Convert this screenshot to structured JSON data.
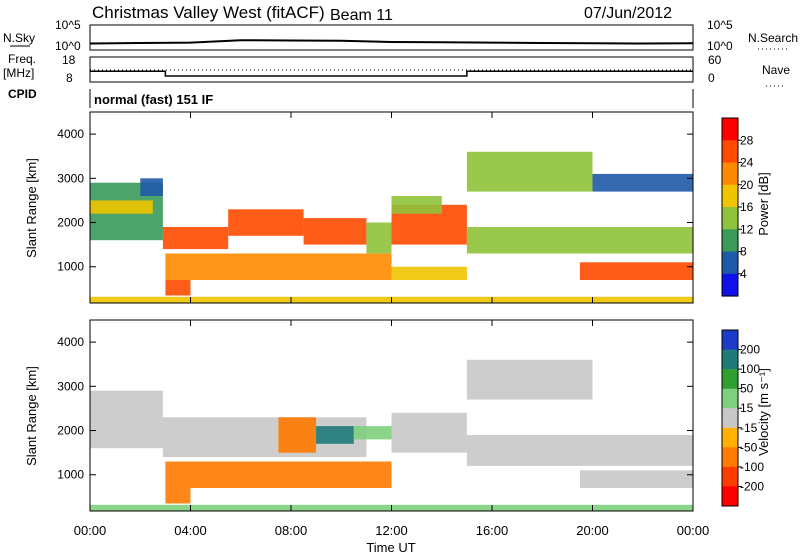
{
  "header": {
    "station": "Christmas Valley West (fitACF)",
    "beam": "Beam 11",
    "date": "07/Jun/2012"
  },
  "strip_labels": {
    "nsky": "N.Sky",
    "nsearch": "N.Search",
    "freq": "Freq.",
    "freq_unit": "[MHz]",
    "nave": "Nave",
    "cpid": "CPID",
    "cpid_text": "normal (fast) 151 IF",
    "noise_tick_hi": "10^5",
    "noise_tick_lo": "10^0",
    "freq_tick_hi": "18",
    "freq_tick_lo": "8",
    "nave_tick_hi": "60",
    "nave_tick_lo": "0"
  },
  "axes": {
    "ylabel": "Slant Range [km]",
    "xlabel": "Time UT",
    "yticks": [
      "1000",
      "2000",
      "3000",
      "4000"
    ],
    "xticks": [
      "00:00",
      "04:00",
      "08:00",
      "12:00",
      "16:00",
      "20:00",
      "00:00"
    ]
  },
  "colorbars": {
    "power": {
      "label": "Power [dB]",
      "ticks": [
        "28",
        "24",
        "20",
        "16",
        "12",
        "8",
        "4"
      ],
      "colors": [
        "#ff0000",
        "#ff4a00",
        "#ff8a00",
        "#f0c400",
        "#8fc23a",
        "#3a9a5a",
        "#1f5aa8",
        "#1010e8"
      ]
    },
    "velocity": {
      "label": "Velocity [m s⁻¹]",
      "ticks": [
        "200",
        "100",
        "50",
        "15",
        "-15",
        "-50",
        "-100",
        "-200"
      ],
      "colors": [
        "#1c3cc8",
        "#1f7a7a",
        "#2fa02f",
        "#7ed07e",
        "#c8c8c8",
        "#ffb000",
        "#ff7a00",
        "#ff3c00",
        "#ff0000"
      ]
    }
  },
  "chart_data": [
    {
      "type": "line",
      "name": "noise",
      "x_range_hours": [
        0,
        24
      ],
      "ylog": true,
      "x": [
        0,
        2,
        4,
        6,
        8,
        10,
        12,
        14,
        16,
        18,
        20,
        22,
        24
      ],
      "y_sky": [
        20,
        25,
        30,
        90,
        80,
        70,
        40,
        35,
        30,
        25,
        22,
        20,
        22
      ]
    },
    {
      "type": "line",
      "name": "frequency",
      "ylabel": "Freq. [MHz]",
      "ylim": [
        8,
        18
      ],
      "x": [
        0,
        3,
        3,
        15,
        15,
        24
      ],
      "values": [
        12.3,
        12.3,
        10.4,
        10.4,
        12.3,
        12.3
      ]
    },
    {
      "type": "heatmap",
      "name": "power",
      "xlabel": "Time UT",
      "ylabel": "Slant Range [km]",
      "xlim_hours": [
        0,
        24
      ],
      "ylim_km": [
        180,
        4500
      ],
      "colorbar_label": "Power [dB]",
      "colorbar_ticks": [
        4,
        8,
        12,
        16,
        20,
        24,
        28
      ],
      "regions": [
        {
          "t0": 0.0,
          "t1": 2.9,
          "r0": 1600,
          "r1": 2900,
          "value": 12
        },
        {
          "t0": 0.0,
          "t1": 2.5,
          "r0": 2200,
          "r1": 2500,
          "value": 18
        },
        {
          "t0": 2.0,
          "t1": 2.9,
          "r0": 2600,
          "r1": 3000,
          "value": 8
        },
        {
          "t0": 2.9,
          "t1": 5.5,
          "r0": 1400,
          "r1": 1900,
          "value": 28
        },
        {
          "t0": 5.5,
          "t1": 8.5,
          "r0": 1700,
          "r1": 2300,
          "value": 28
        },
        {
          "t0": 8.5,
          "t1": 11.0,
          "r0": 1500,
          "r1": 2100,
          "value": 28
        },
        {
          "t0": 3.0,
          "t1": 12.0,
          "r0": 700,
          "r1": 1300,
          "value": 22
        },
        {
          "t0": 3.0,
          "t1": 4.0,
          "r0": 350,
          "r1": 700,
          "value": 26
        },
        {
          "t0": 11.0,
          "t1": 12.0,
          "r0": 1300,
          "r1": 2000,
          "value": 14
        },
        {
          "t0": 12.0,
          "t1": 15.0,
          "r0": 1500,
          "r1": 2400,
          "value": 28
        },
        {
          "t0": 12.0,
          "t1": 14.0,
          "r0": 2200,
          "r1": 2600,
          "value": 14
        },
        {
          "t0": 12.0,
          "t1": 15.0,
          "r0": 700,
          "r1": 1000,
          "value": 18
        },
        {
          "t0": 15.0,
          "t1": 24.0,
          "r0": 1300,
          "r1": 1900,
          "value": 14
        },
        {
          "t0": 15.0,
          "t1": 20.0,
          "r0": 2700,
          "r1": 3600,
          "value": 14
        },
        {
          "t0": 19.5,
          "t1": 24.0,
          "r0": 700,
          "r1": 1100,
          "value": 26
        },
        {
          "t0": 20.0,
          "t1": 24.0,
          "r0": 2700,
          "r1": 3100,
          "value": 8
        },
        {
          "t0": 0.0,
          "t1": 24.0,
          "r0": 180,
          "r1": 320,
          "value": 18
        }
      ]
    },
    {
      "type": "heatmap",
      "name": "velocity",
      "xlabel": "Time UT",
      "ylabel": "Slant Range [km]",
      "xlim_hours": [
        0,
        24
      ],
      "ylim_km": [
        180,
        4500
      ],
      "colorbar_label": "Velocity [m s⁻¹]",
      "colorbar_ticks": [
        -200,
        -100,
        -50,
        -15,
        15,
        50,
        100,
        200
      ],
      "regions": [
        {
          "t0": 0.0,
          "t1": 2.9,
          "r0": 1600,
          "r1": 2900,
          "value": 0
        },
        {
          "t0": 2.9,
          "t1": 11.0,
          "r0": 1400,
          "r1": 2300,
          "value": 0
        },
        {
          "t0": 3.0,
          "t1": 12.0,
          "r0": 700,
          "r1": 1300,
          "value": -60
        },
        {
          "t0": 3.0,
          "t1": 4.0,
          "r0": 350,
          "r1": 700,
          "value": -60
        },
        {
          "t0": 7.5,
          "t1": 9.0,
          "r0": 1500,
          "r1": 2300,
          "value": -60
        },
        {
          "t0": 9.0,
          "t1": 10.5,
          "r0": 1700,
          "r1": 2100,
          "value": 200
        },
        {
          "t0": 10.5,
          "t1": 12.0,
          "r0": 1800,
          "r1": 2100,
          "value": 40
        },
        {
          "t0": 12.0,
          "t1": 15.0,
          "r0": 1500,
          "r1": 2400,
          "value": 0
        },
        {
          "t0": 15.0,
          "t1": 24.0,
          "r0": 1200,
          "r1": 1900,
          "value": 0
        },
        {
          "t0": 15.0,
          "t1": 20.0,
          "r0": 2700,
          "r1": 3600,
          "value": 0
        },
        {
          "t0": 19.5,
          "t1": 24.0,
          "r0": 700,
          "r1": 1100,
          "value": 0
        },
        {
          "t0": 0.0,
          "t1": 24.0,
          "r0": 180,
          "r1": 320,
          "value": 30
        }
      ]
    }
  ]
}
